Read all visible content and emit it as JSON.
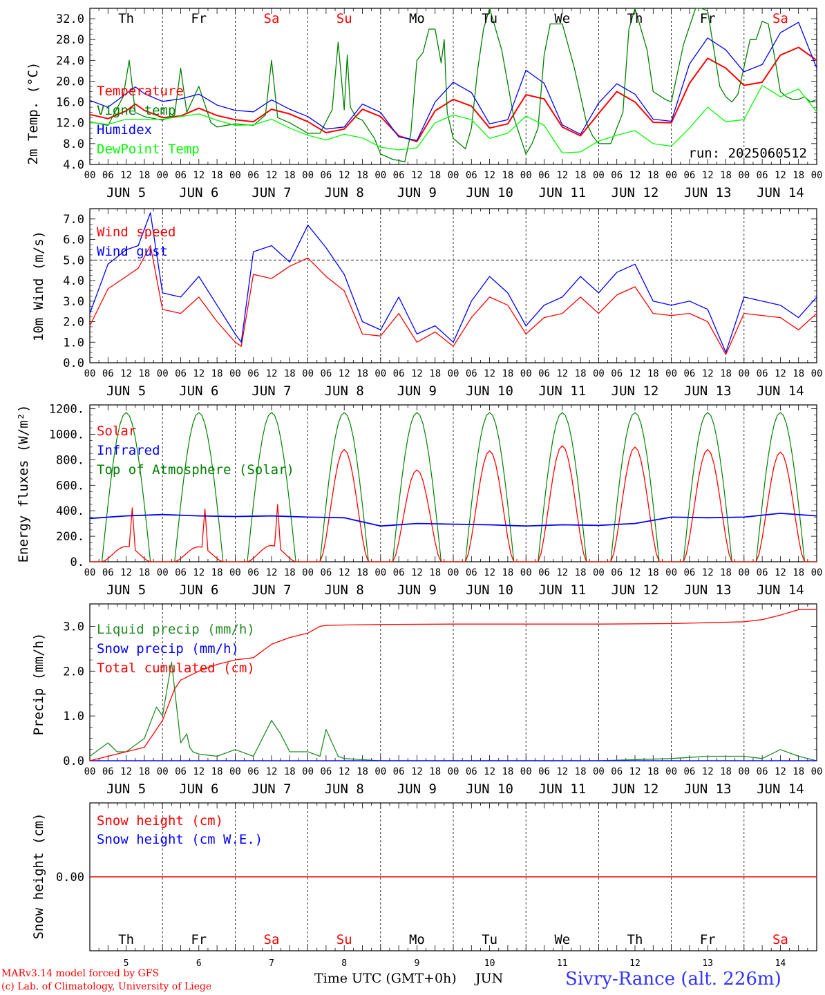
{
  "run_label": "run: 2025060512",
  "station": "Sivry-Rance (alt. 226m)",
  "credit_1": "MARv3.14 model forced by GFS",
  "credit_2": "(c) Lab. of Climatology, University of Liege",
  "time_axis_label": "Time UTC (GMT+0h)",
  "month_label": "JUN",
  "weekdays": [
    "Th",
    "Fr",
    "Sa",
    "Su",
    "Mo",
    "Tu",
    "We",
    "Th",
    "Fr",
    "Sa"
  ],
  "weekend_flags": [
    false,
    false,
    true,
    true,
    false,
    false,
    false,
    false,
    false,
    true
  ],
  "day_numbers": [
    "5",
    "6",
    "7",
    "8",
    "9",
    "10",
    "11",
    "12",
    "13",
    "14"
  ],
  "date_labels": [
    "JUN  5",
    "JUN  6",
    "JUN  7",
    "JUN  8",
    "JUN  9",
    "JUN 10",
    "JUN 11",
    "JUN 12",
    "JUN 13",
    "JUN 14"
  ],
  "hour_labels": [
    "00",
    "06",
    "12",
    "18"
  ],
  "colors": {
    "red": "#ff0000",
    "blue": "#0000ff",
    "green": "#008000",
    "light_green": "#00ff00",
    "dark_green": "#228b22",
    "weekend": "#ff0000"
  },
  "chart_data": [
    {
      "id": "temp",
      "type": "line",
      "ylabel": "2m Temp. (°C)",
      "ylim": [
        4,
        34
      ],
      "ticks": [
        4,
        8,
        12,
        16,
        20,
        24,
        28,
        32
      ],
      "tick_labels": [
        "4.0",
        "8.0",
        "12.0",
        "16.0",
        "20.0",
        "24.0",
        "28.0",
        "32.0"
      ],
      "x_unit": "hours from JUN 5 00 UTC",
      "series": [
        {
          "name": "Temperature",
          "color": "red",
          "x": [
            0,
            6,
            12,
            15,
            18,
            24,
            30,
            36,
            42,
            48,
            54,
            60,
            66,
            72,
            78,
            84,
            90,
            96,
            102,
            108,
            114,
            120,
            126,
            132,
            138,
            144,
            150,
            156,
            162,
            168,
            174,
            180,
            186,
            192,
            198,
            204,
            210,
            216,
            222,
            228,
            234,
            240
          ],
          "y": [
            13.6,
            12.8,
            14.3,
            15.6,
            14.4,
            13.0,
            13.3,
            14.8,
            13.4,
            12.6,
            12.2,
            14.6,
            13.7,
            12.2,
            10.1,
            10.8,
            14.6,
            13.2,
            9.5,
            8.4,
            14.3,
            16.5,
            15.2,
            11.0,
            11.8,
            17.4,
            16.6,
            11.2,
            9.5,
            13.8,
            18.0,
            16.0,
            12.1,
            12.0,
            19.6,
            24.4,
            22.5,
            19.2,
            19.8,
            25.0,
            26.5,
            24.0
          ]
        },
        {
          "name": "Vigne temp",
          "color": "green",
          "x": [
            0,
            6,
            11,
            13,
            15,
            18,
            24,
            28,
            30,
            32,
            36,
            40,
            42,
            48,
            54,
            58,
            60,
            62,
            66,
            72,
            76,
            80,
            82,
            84,
            85,
            86,
            88,
            90,
            94,
            96,
            100,
            104,
            106,
            108,
            110,
            112,
            114,
            116,
            117,
            118,
            120,
            124,
            126,
            128,
            130,
            132,
            136,
            140,
            142,
            144,
            146,
            148,
            150,
            152,
            156,
            160,
            164,
            166,
            168,
            172,
            176,
            178,
            180,
            184,
            186,
            190,
            192,
            196,
            200,
            202,
            204,
            208,
            210,
            212,
            214,
            218,
            220,
            222,
            224,
            226,
            228,
            230,
            232,
            234,
            236,
            238,
            240
          ],
          "y": [
            12.2,
            11.5,
            17.0,
            24.0,
            14.0,
            13.2,
            12.5,
            13.5,
            22.5,
            14.0,
            19.0,
            12.0,
            11.2,
            11.8,
            11.5,
            13.5,
            24.0,
            13.0,
            12.0,
            10.0,
            10.0,
            14.5,
            27.5,
            14.5,
            25.0,
            15.0,
            13.0,
            12.5,
            9.0,
            6.0,
            5.0,
            4.5,
            10.0,
            24.0,
            25.5,
            30.0,
            30.0,
            23.5,
            28.0,
            14.0,
            9.0,
            7.0,
            11.0,
            22.0,
            30.0,
            34.0,
            26.0,
            13.0,
            9.5,
            6.0,
            8.0,
            11.0,
            25.0,
            31.0,
            31.0,
            22.5,
            12.0,
            9.5,
            8.0,
            8.0,
            14.0,
            30.0,
            34.0,
            26.0,
            18.0,
            16.5,
            16.0,
            27.0,
            35.0,
            36.5,
            33.5,
            19.0,
            17.0,
            16.0,
            17.5,
            28.0,
            28.0,
            31.5,
            31.0,
            25.0,
            18.0,
            17.0,
            16.5,
            16.5,
            17.0,
            16.0,
            16.5
          ]
        },
        {
          "name": "Humidex",
          "color": "blue",
          "x": [
            0,
            6,
            12,
            15,
            18,
            24,
            30,
            36,
            42,
            48,
            54,
            60,
            66,
            72,
            78,
            84,
            90,
            96,
            102,
            108,
            114,
            120,
            126,
            132,
            138,
            144,
            150,
            156,
            162,
            168,
            174,
            180,
            186,
            192,
            198,
            204,
            210,
            216,
            222,
            228,
            234,
            240
          ],
          "y": [
            16.3,
            15.0,
            17.6,
            18.9,
            17.6,
            16.1,
            16.6,
            17.5,
            15.4,
            14.4,
            14.1,
            16.4,
            14.6,
            13.2,
            10.8,
            11.2,
            15.6,
            14.0,
            9.3,
            8.6,
            16.0,
            19.8,
            17.8,
            11.8,
            12.6,
            22.1,
            19.6,
            11.6,
            9.8,
            15.8,
            19.5,
            17.5,
            12.7,
            12.3,
            23.3,
            28.3,
            26.0,
            21.8,
            23.2,
            29.3,
            31.3,
            22.5
          ]
        },
        {
          "name": "DewPoint Temp",
          "color": "light_green",
          "x": [
            0,
            6,
            12,
            18,
            24,
            30,
            36,
            42,
            48,
            54,
            60,
            66,
            72,
            78,
            84,
            90,
            96,
            102,
            108,
            114,
            120,
            126,
            132,
            138,
            144,
            150,
            156,
            162,
            168,
            174,
            180,
            186,
            192,
            198,
            204,
            210,
            216,
            222,
            228,
            234,
            240
          ],
          "y": [
            12.1,
            11.7,
            12.7,
            12.6,
            12.7,
            13.2,
            13.7,
            12.5,
            11.5,
            11.6,
            12.7,
            11.0,
            9.6,
            8.7,
            9.8,
            9.1,
            7.3,
            6.8,
            7.2,
            12.0,
            13.5,
            12.6,
            9.0,
            10.0,
            13.3,
            11.5,
            6.2,
            6.4,
            8.5,
            9.6,
            10.5,
            8.0,
            7.5,
            11.0,
            15.0,
            12.2,
            12.6,
            19.2,
            17.0,
            18.5,
            14.1
          ]
        }
      ]
    },
    {
      "id": "wind",
      "type": "line",
      "ylabel": "10m Wind (m/s)",
      "ylim": [
        0,
        7.5
      ],
      "ticks": [
        0,
        1,
        2,
        3,
        4,
        5,
        6,
        7
      ],
      "tick_labels": [
        "0.0",
        "1.0",
        "2.0",
        "3.0",
        "4.0",
        "5.0",
        "6.0",
        "7.0"
      ],
      "reference_line": 5.0,
      "series": [
        {
          "name": "Wind speed",
          "color": "red",
          "x": [
            0,
            6,
            12,
            16,
            20,
            24,
            30,
            36,
            42,
            48,
            50,
            54,
            60,
            66,
            72,
            78,
            84,
            90,
            96,
            102,
            108,
            114,
            120,
            126,
            132,
            138,
            144,
            150,
            156,
            162,
            168,
            174,
            180,
            186,
            192,
            198,
            204,
            210,
            216,
            222,
            228,
            234,
            240
          ],
          "y": [
            1.8,
            3.6,
            4.2,
            4.6,
            5.7,
            2.6,
            2.4,
            3.2,
            2.0,
            1.0,
            0.8,
            4.3,
            4.1,
            4.7,
            5.1,
            4.2,
            3.5,
            1.4,
            1.3,
            2.4,
            1.0,
            1.5,
            0.8,
            2.2,
            3.2,
            2.8,
            1.4,
            2.2,
            2.4,
            3.2,
            2.4,
            3.3,
            3.7,
            2.4,
            2.3,
            2.4,
            2.0,
            0.4,
            2.4,
            2.3,
            2.2,
            1.6,
            2.4
          ]
        },
        {
          "name": "Wind gust",
          "color": "blue",
          "x": [
            0,
            6,
            12,
            16,
            20,
            24,
            30,
            36,
            42,
            48,
            50,
            54,
            60,
            66,
            72,
            78,
            84,
            90,
            96,
            102,
            108,
            114,
            120,
            126,
            132,
            138,
            144,
            150,
            156,
            162,
            168,
            174,
            180,
            186,
            192,
            198,
            204,
            210,
            216,
            222,
            228,
            234,
            240
          ],
          "y": [
            2.4,
            4.8,
            5.5,
            5.7,
            7.3,
            3.4,
            3.2,
            4.2,
            2.8,
            1.4,
            1.0,
            5.4,
            5.7,
            4.9,
            6.7,
            5.6,
            4.3,
            2.0,
            1.6,
            3.2,
            1.4,
            1.8,
            1.0,
            3.0,
            4.2,
            3.4,
            1.8,
            2.8,
            3.2,
            4.2,
            3.4,
            4.4,
            4.8,
            3.0,
            2.8,
            3.0,
            2.6,
            0.5,
            3.2,
            3.0,
            2.8,
            2.2,
            3.2
          ]
        }
      ]
    },
    {
      "id": "energy",
      "type": "line",
      "ylabel": "Energy fluxes (W/m²)",
      "ylim": [
        0,
        1230
      ],
      "ticks": [
        0,
        200,
        400,
        600,
        800,
        1000,
        1200
      ],
      "tick_labels": [
        "0.",
        "200.",
        "400.",
        "600.",
        "800.",
        "1000.",
        "1200."
      ],
      "toa_peak": 1170,
      "series": [
        {
          "name": "Solar",
          "color": "red",
          "daily_peaks": [
            480,
            470,
            510,
            880,
            720,
            870,
            910,
            900,
            880,
            860
          ]
        },
        {
          "name": "Infrared",
          "color": "blue",
          "x": [
            0,
            12,
            24,
            36,
            48,
            60,
            72,
            84,
            96,
            108,
            120,
            132,
            144,
            156,
            168,
            180,
            192,
            204,
            216,
            228,
            240
          ],
          "y": [
            340,
            360,
            370,
            360,
            355,
            360,
            350,
            345,
            280,
            300,
            295,
            290,
            280,
            290,
            285,
            300,
            350,
            345,
            350,
            380,
            360
          ]
        },
        {
          "name": "Top of Atmosphere (Solar)",
          "color": "green"
        }
      ]
    },
    {
      "id": "precip",
      "type": "line",
      "ylabel": "Precip (mm/h)",
      "ylim": [
        0,
        3.5
      ],
      "ticks": [
        0,
        1,
        2,
        3
      ],
      "tick_labels": [
        "0.0",
        "1.0",
        "2.0",
        "3.0"
      ],
      "series": [
        {
          "name": "Liquid precip (mm/h)",
          "color": "dark_green",
          "x": [
            0,
            6,
            9,
            12,
            18,
            22,
            24,
            27,
            28,
            30,
            32,
            33,
            34,
            36,
            42,
            48,
            54,
            60,
            63,
            66,
            72,
            76,
            78,
            82,
            84,
            96,
            120,
            156,
            168,
            192,
            204,
            216,
            222,
            228,
            234,
            240
          ],
          "y": [
            0.1,
            0.4,
            0.2,
            0.2,
            0.5,
            1.2,
            1.0,
            2.2,
            1.6,
            0.4,
            0.6,
            0.3,
            0.2,
            0.15,
            0.1,
            0.25,
            0.1,
            0.9,
            0.6,
            0.2,
            0.2,
            0.1,
            0.7,
            0.1,
            0.05,
            0.0,
            0.0,
            0.0,
            0.0,
            0.05,
            0.1,
            0.1,
            0.05,
            0.25,
            0.1,
            0.0
          ]
        },
        {
          "name": "Snow precip (mm/h)",
          "color": "blue",
          "x": [
            0,
            240
          ],
          "y": [
            0.0,
            0.0
          ]
        },
        {
          "name": "Total cumulated (cm)",
          "color": "red",
          "x": [
            0,
            6,
            12,
            18,
            24,
            28,
            30,
            36,
            42,
            48,
            54,
            60,
            66,
            72,
            76,
            78,
            84,
            96,
            120,
            144,
            168,
            192,
            204,
            216,
            222,
            228,
            234,
            240
          ],
          "y": [
            0.0,
            0.1,
            0.2,
            0.3,
            0.9,
            1.6,
            1.8,
            2.0,
            2.15,
            2.25,
            2.3,
            2.6,
            2.75,
            2.85,
            3.0,
            3.02,
            3.03,
            3.04,
            3.05,
            3.05,
            3.05,
            3.06,
            3.08,
            3.1,
            3.15,
            3.25,
            3.37,
            3.38
          ]
        }
      ]
    },
    {
      "id": "snow",
      "type": "line",
      "ylabel": "Snow height (cm)",
      "ticks": [
        0
      ],
      "tick_labels": [
        "0.00"
      ],
      "series": [
        {
          "name": "Snow height (cm)",
          "color": "red",
          "x": [
            0,
            240
          ],
          "y": [
            0,
            0
          ]
        },
        {
          "name": "Snow height (cm W.E.)",
          "color": "blue",
          "x": [
            0,
            240
          ],
          "y": [
            0,
            0
          ]
        }
      ]
    }
  ]
}
